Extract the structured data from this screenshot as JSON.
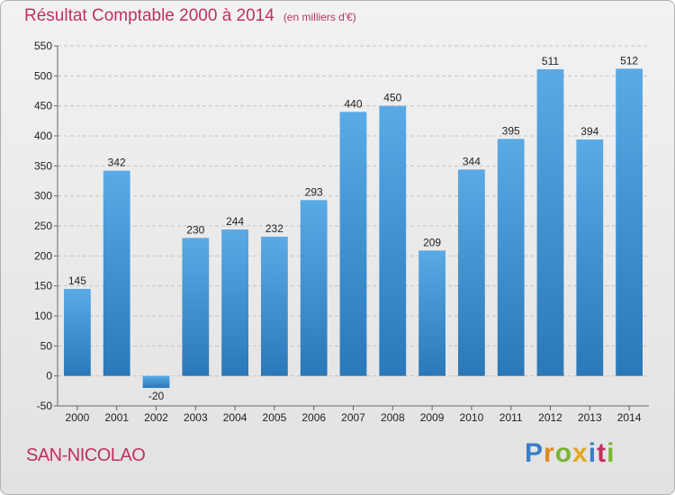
{
  "chart_data": {
    "type": "bar",
    "title": "Résultat Comptable 2000 à 2014",
    "subtitle": "(en milliers d'€)",
    "categories": [
      "2000",
      "2001",
      "2002",
      "2003",
      "2004",
      "2005",
      "2006",
      "2007",
      "2008",
      "2009",
      "2010",
      "2011",
      "2012",
      "2013",
      "2014"
    ],
    "values": [
      145,
      342,
      -20,
      230,
      244,
      232,
      293,
      440,
      450,
      209,
      344,
      395,
      511,
      394,
      512
    ],
    "ylim": [
      -50,
      550
    ],
    "yticks": [
      -50,
      0,
      50,
      100,
      150,
      200,
      250,
      300,
      350,
      400,
      450,
      500,
      550
    ],
    "grid": true,
    "bar_color_top": "#5aaae6",
    "bar_color_bottom": "#2a78b8",
    "title_color": "#c0305f"
  },
  "commune": "SAN-NICOLAO",
  "brand": {
    "letters": [
      "P",
      "r",
      "o",
      "x",
      "i",
      "t",
      "i"
    ],
    "colors": [
      "#3b7dc8",
      "#e08a1c",
      "#7ab530",
      "#e0a81c",
      "#3b7dc8",
      "#c0305f",
      "#7ab530"
    ]
  }
}
